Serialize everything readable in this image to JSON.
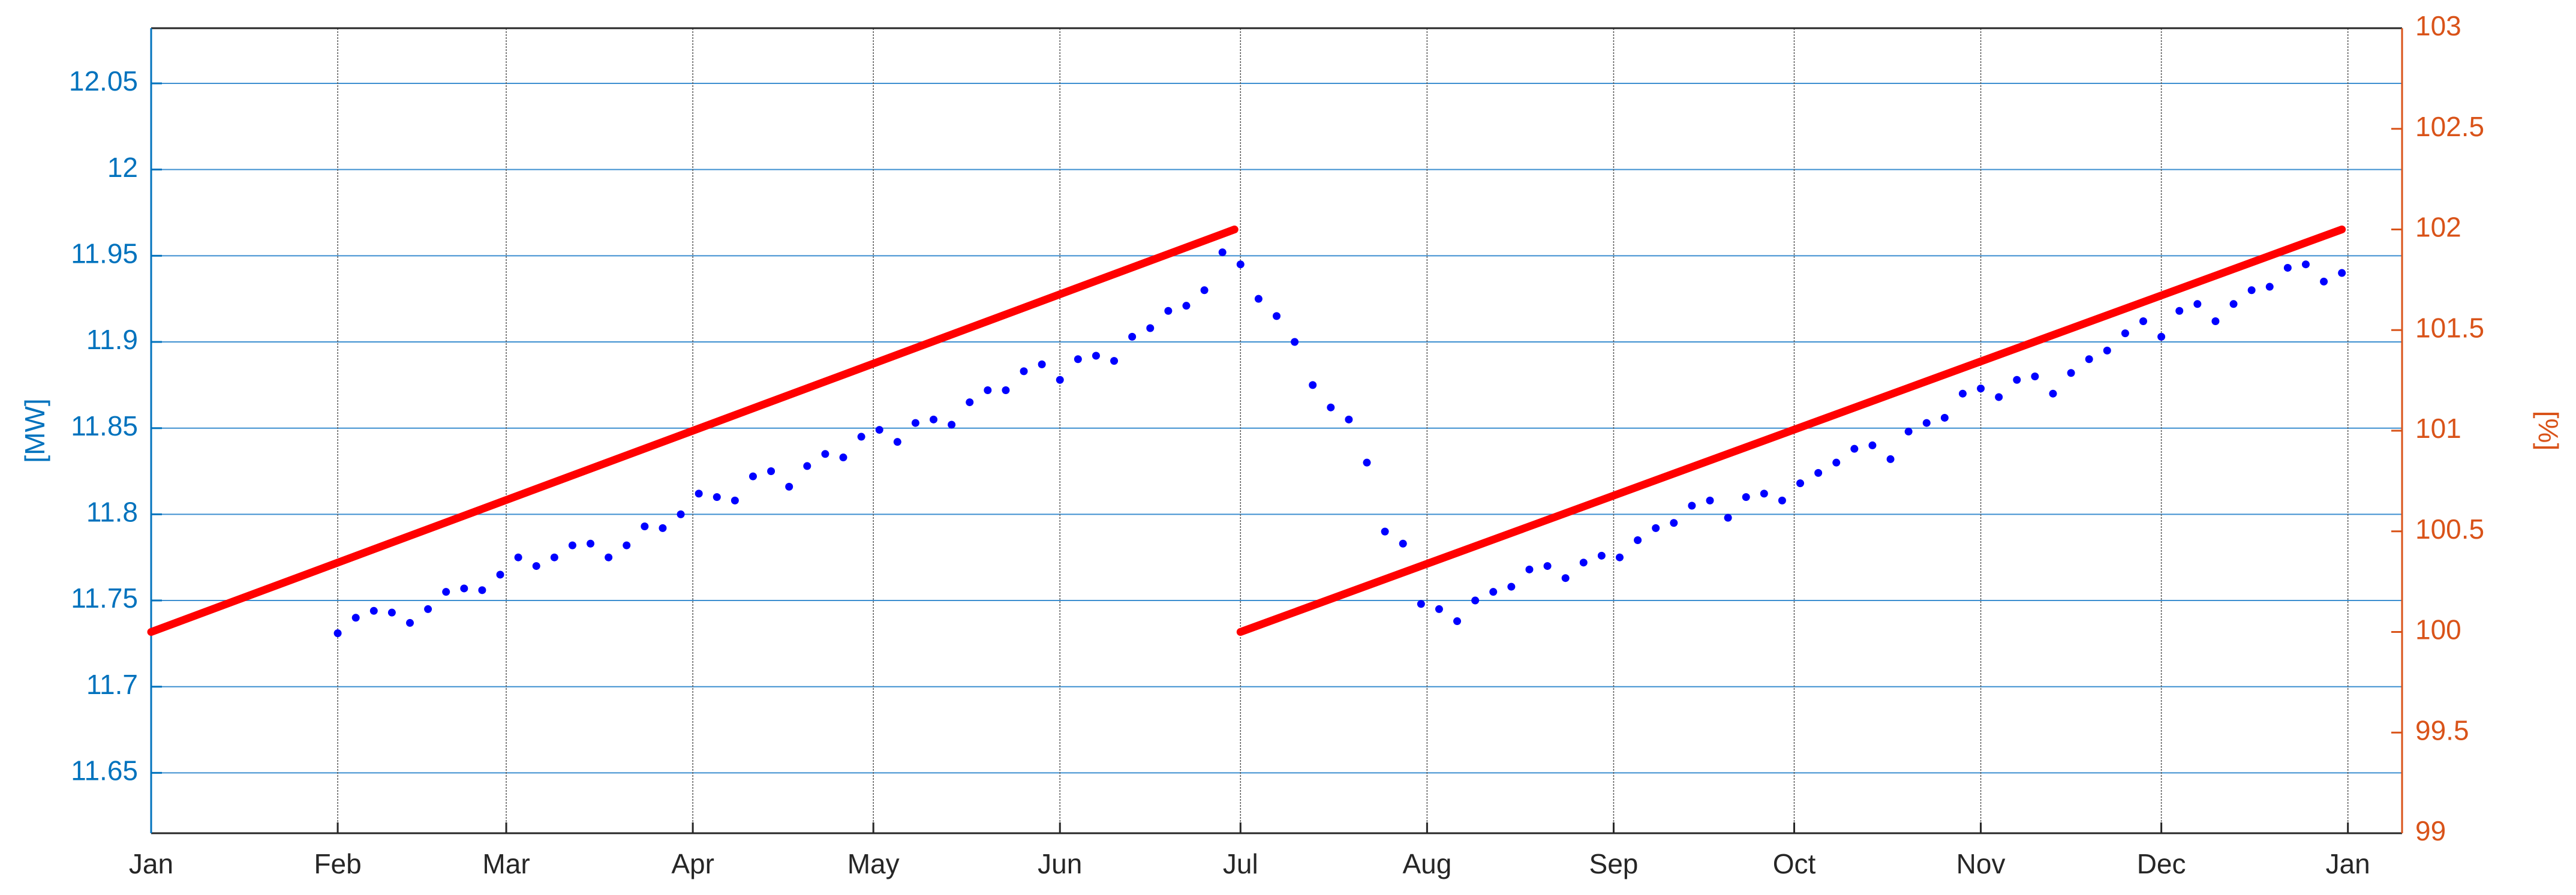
{
  "chart_data": {
    "type": "line",
    "ylabel": "[MW]",
    "y2label": "[%]",
    "xlim": [
      0,
      374
    ],
    "xticks": [
      {
        "value": 0,
        "label": "Jan"
      },
      {
        "value": 31,
        "label": "Feb"
      },
      {
        "value": 59,
        "label": "Mar"
      },
      {
        "value": 90,
        "label": "Apr"
      },
      {
        "value": 120,
        "label": "May"
      },
      {
        "value": 151,
        "label": "Jun"
      },
      {
        "value": 181,
        "label": "Jul"
      },
      {
        "value": 212,
        "label": "Aug"
      },
      {
        "value": 243,
        "label": "Sep"
      },
      {
        "value": 273,
        "label": "Oct"
      },
      {
        "value": 304,
        "label": "Nov"
      },
      {
        "value": 334,
        "label": "Dec"
      },
      {
        "value": 365,
        "label": "Jan"
      }
    ],
    "ylim": [
      11.615,
      12.082
    ],
    "yticks": [
      11.65,
      11.7,
      11.75,
      11.8,
      11.85,
      11.9,
      11.95,
      12,
      12.05
    ],
    "y2lim": [
      99,
      103
    ],
    "y2ticks": [
      99,
      99.5,
      100,
      100.5,
      101,
      101.5,
      102,
      102.5,
      103
    ],
    "ycolor": "#0072bd",
    "y2color": "#d95319",
    "grid": true,
    "series": [
      {
        "color": "#0000ff",
        "style": "markers",
        "x": [
          31,
          34,
          37,
          40,
          43,
          46,
          49,
          52,
          55,
          58,
          61,
          64,
          67,
          70,
          73,
          76,
          79,
          82,
          85,
          88,
          91,
          94,
          97,
          100,
          103,
          106,
          109,
          112,
          115,
          118,
          121,
          124,
          127,
          130,
          133,
          136,
          139,
          142,
          145,
          148,
          151,
          154,
          157,
          160,
          163,
          166,
          169,
          172,
          175,
          178,
          181,
          184,
          187,
          190,
          193,
          196,
          199,
          202,
          205,
          208,
          211,
          214,
          217,
          220,
          223,
          226,
          229,
          232,
          235,
          238,
          241,
          244,
          247,
          250,
          253,
          256,
          259,
          262,
          265,
          268,
          271,
          274,
          277,
          280,
          283,
          286,
          289,
          292,
          295,
          298,
          301,
          304,
          307,
          310,
          313,
          316,
          319,
          322,
          325,
          328,
          331,
          334,
          337,
          340,
          343,
          346,
          349,
          352,
          355,
          358,
          361,
          364
        ],
        "values": [
          11.731,
          11.74,
          11.744,
          11.743,
          11.737,
          11.745,
          11.755,
          11.757,
          11.756,
          11.765,
          11.775,
          11.77,
          11.775,
          11.782,
          11.783,
          11.775,
          11.782,
          11.793,
          11.792,
          11.8,
          11.812,
          11.81,
          11.808,
          11.822,
          11.825,
          11.816,
          11.828,
          11.835,
          11.833,
          11.845,
          11.849,
          11.842,
          11.853,
          11.855,
          11.852,
          11.865,
          11.872,
          11.872,
          11.883,
          11.887,
          11.878,
          11.89,
          11.892,
          11.889,
          11.903,
          11.908,
          11.918,
          11.921,
          11.93,
          11.952,
          11.945,
          11.925,
          11.915,
          11.9,
          11.875,
          11.862,
          11.855,
          11.83,
          11.79,
          11.783,
          11.748,
          11.745,
          11.738,
          11.75,
          11.755,
          11.758,
          11.768,
          11.77,
          11.763,
          11.772,
          11.776,
          11.775,
          11.785,
          11.792,
          11.795,
          11.805,
          11.808,
          11.798,
          11.81,
          11.812,
          11.808,
          11.818,
          11.824,
          11.83,
          11.838,
          11.84,
          11.832,
          11.848,
          11.853,
          11.856,
          11.87,
          11.873,
          11.868,
          11.878,
          11.88,
          11.87,
          11.882,
          11.89,
          11.895,
          11.905,
          11.912,
          11.903,
          11.918,
          11.922,
          11.912,
          11.922,
          11.93,
          11.932,
          11.943,
          11.945,
          11.935,
          11.94
        ]
      },
      {
        "color": "#ff0000",
        "style": "line",
        "axis": "y2",
        "x": [
          0,
          180
        ],
        "values": [
          100,
          102
        ]
      },
      {
        "color": "#ff0000",
        "style": "line",
        "axis": "y2",
        "x": [
          181,
          364
        ],
        "values": [
          100,
          102
        ]
      }
    ]
  }
}
